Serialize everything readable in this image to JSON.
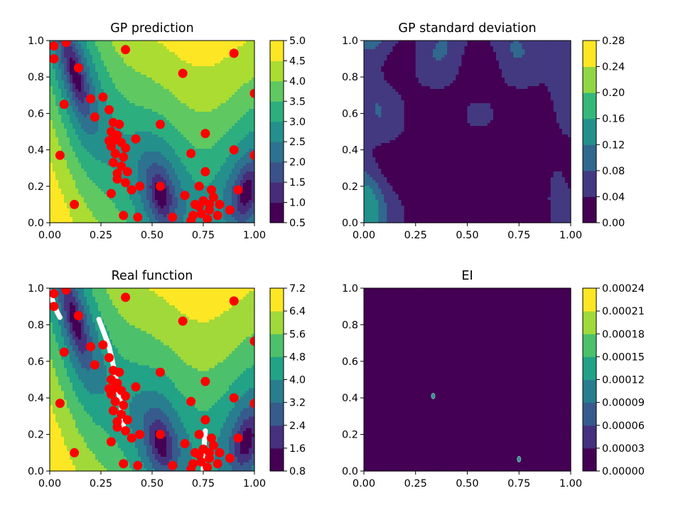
{
  "chart_data": [
    {
      "type": "contour",
      "title": "GP prediction",
      "xlim": [
        0,
        1
      ],
      "ylim": [
        0,
        1
      ],
      "xticks": [
        "0.00",
        "0.25",
        "0.50",
        "0.75",
        "1.00"
      ],
      "yticks": [
        "0.0",
        "0.2",
        "0.4",
        "0.6",
        "0.8",
        "1.0"
      ],
      "colorbar": {
        "levels": [
          0.5,
          1.0,
          1.5,
          2.0,
          2.5,
          3.0,
          3.5,
          4.0,
          4.5,
          5.0
        ],
        "ticks": [
          "0.5",
          "1.0",
          "1.5",
          "2.0",
          "2.5",
          "3.0",
          "3.5",
          "4.0",
          "4.5",
          "5.0"
        ]
      },
      "colormap": "viridis",
      "field": "branin-like",
      "samples_color": "#ff0000",
      "samples": [
        [
          0.02,
          0.97
        ],
        [
          0.08,
          0.99
        ],
        [
          0.02,
          0.9
        ],
        [
          0.14,
          0.85
        ],
        [
          0.37,
          0.95
        ],
        [
          0.9,
          0.93
        ],
        [
          0.65,
          0.82
        ],
        [
          1.0,
          0.71
        ],
        [
          0.07,
          0.65
        ],
        [
          0.2,
          0.68
        ],
        [
          0.26,
          0.69
        ],
        [
          0.22,
          0.58
        ],
        [
          0.29,
          0.62
        ],
        [
          0.31,
          0.55
        ],
        [
          0.34,
          0.54
        ],
        [
          0.3,
          0.5
        ],
        [
          0.33,
          0.48
        ],
        [
          0.31,
          0.45
        ],
        [
          0.35,
          0.44
        ],
        [
          0.3,
          0.42
        ],
        [
          0.32,
          0.38
        ],
        [
          0.36,
          0.36
        ],
        [
          0.31,
          0.33
        ],
        [
          0.35,
          0.31
        ],
        [
          0.38,
          0.28
        ],
        [
          0.33,
          0.27
        ],
        [
          0.29,
          0.45
        ],
        [
          0.37,
          0.41
        ],
        [
          0.42,
          0.46
        ],
        [
          0.54,
          0.54
        ],
        [
          0.76,
          0.49
        ],
        [
          0.69,
          0.38
        ],
        [
          0.9,
          0.4
        ],
        [
          1.0,
          0.37
        ],
        [
          0.05,
          0.37
        ],
        [
          0.33,
          0.24
        ],
        [
          0.37,
          0.22
        ],
        [
          0.4,
          0.18
        ],
        [
          0.44,
          0.2
        ],
        [
          0.54,
          0.2
        ],
        [
          0.66,
          0.15
        ],
        [
          0.73,
          0.2
        ],
        [
          0.75,
          0.12
        ],
        [
          0.71,
          0.1
        ],
        [
          0.78,
          0.1
        ],
        [
          0.74,
          0.05
        ],
        [
          0.8,
          0.14
        ],
        [
          0.83,
          0.1
        ],
        [
          0.92,
          0.18
        ],
        [
          0.76,
          0.28
        ],
        [
          0.79,
          0.18
        ],
        [
          0.7,
          0.04
        ],
        [
          0.77,
          0.02
        ],
        [
          0.82,
          0.04
        ],
        [
          0.12,
          0.1
        ],
        [
          0.6,
          0.03
        ],
        [
          0.36,
          0.04
        ],
        [
          0.43,
          0.03
        ],
        [
          0.69,
          0.01
        ],
        [
          0.88,
          0.07
        ],
        [
          0.3,
          0.16
        ],
        [
          0.73,
          0.09
        ],
        [
          0.78,
          0.07
        ]
      ]
    },
    {
      "type": "contour",
      "title": "GP standard deviation",
      "xlim": [
        0,
        1
      ],
      "ylim": [
        0,
        1
      ],
      "xticks": [
        "0.00",
        "0.25",
        "0.50",
        "0.75",
        "1.00"
      ],
      "yticks": [
        "0.0",
        "0.2",
        "0.4",
        "0.6",
        "0.8",
        "1.0"
      ],
      "colorbar": {
        "levels": [
          0.0,
          0.04,
          0.08,
          0.12,
          0.16,
          0.2,
          0.24,
          0.28
        ],
        "ticks": [
          "0.00",
          "0.04",
          "0.08",
          "0.12",
          "0.16",
          "0.20",
          "0.24",
          "0.28"
        ]
      },
      "colormap": "viridis",
      "field": "uncertainty"
    },
    {
      "type": "contour",
      "title": "Real function",
      "xlim": [
        0,
        1
      ],
      "ylim": [
        0,
        1
      ],
      "xticks": [
        "0.00",
        "0.25",
        "0.50",
        "0.75",
        "1.00"
      ],
      "yticks": [
        "0.0",
        "0.2",
        "0.4",
        "0.6",
        "0.8",
        "1.0"
      ],
      "colorbar": {
        "levels": [
          0.8,
          1.6,
          2.4,
          3.2,
          4.0,
          4.8,
          5.6,
          6.4,
          7.2
        ],
        "ticks": [
          "0.8",
          "1.6",
          "2.4",
          "3.2",
          "4.0",
          "4.8",
          "5.6",
          "6.4",
          "7.2"
        ]
      },
      "colormap": "viridis",
      "field": "branin-like",
      "samples_color": "#ff0000",
      "minima_color": "#ffffff",
      "minima_paths": [
        [
          [
            0.0,
            0.98
          ],
          [
            0.02,
            0.91
          ],
          [
            0.04,
            0.86
          ],
          [
            0.05,
            0.84
          ]
        ],
        [
          [
            0.24,
            0.83
          ],
          [
            0.26,
            0.77
          ],
          [
            0.29,
            0.68
          ],
          [
            0.31,
            0.58
          ],
          [
            0.33,
            0.47
          ],
          [
            0.35,
            0.35
          ],
          [
            0.36,
            0.24
          ]
        ],
        [
          [
            0.76,
            0.22
          ],
          [
            0.755,
            0.15
          ],
          [
            0.75,
            0.08
          ],
          [
            0.75,
            0.0
          ]
        ]
      ]
    },
    {
      "type": "contour",
      "title": "EI",
      "xlim": [
        0,
        1
      ],
      "ylim": [
        0,
        1
      ],
      "xticks": [
        "0.00",
        "0.25",
        "0.50",
        "0.75",
        "1.00"
      ],
      "yticks": [
        "0.0",
        "0.2",
        "0.4",
        "0.6",
        "0.8",
        "1.0"
      ],
      "colorbar": {
        "levels": [
          0.0,
          3e-05,
          6e-05,
          9e-05,
          0.00012,
          0.00015,
          0.00018,
          0.00021,
          0.00024
        ],
        "ticks": [
          "0.00000",
          "0.00003",
          "0.00006",
          "0.00009",
          "0.00012",
          "0.00015",
          "0.00018",
          "0.00021",
          "0.00024"
        ]
      },
      "colormap": "viridis",
      "field": "ei",
      "ei_peaks": [
        [
          0.335,
          0.41
        ],
        [
          0.75,
          0.065
        ]
      ]
    }
  ]
}
